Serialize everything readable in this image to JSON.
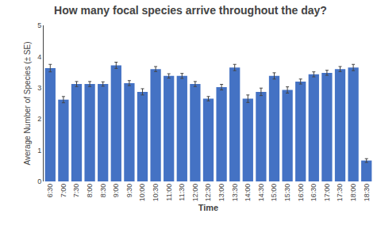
{
  "chart_data": {
    "type": "bar",
    "title": "How many focal species arrive throughout the day?",
    "xlabel": "Time",
    "ylabel": "Average Number of Species (± SE)",
    "categories": [
      "6:30",
      "7:00",
      "7:30",
      "8:00",
      "8:30",
      "9:00",
      "9:30",
      "10:00",
      "10:30",
      "11:00",
      "11:30",
      "12:00",
      "12:30",
      "13:00",
      "13:30",
      "14:00",
      "14:30",
      "15:00",
      "15:30",
      "16:00",
      "16:30",
      "17:00",
      "17:30",
      "18:00",
      "18:30"
    ],
    "values": [
      3.63,
      2.62,
      3.12,
      3.12,
      3.12,
      3.72,
      3.15,
      2.87,
      3.6,
      3.38,
      3.38,
      3.12,
      2.65,
      3.02,
      3.65,
      2.65,
      2.87,
      3.38,
      2.93,
      3.2,
      3.43,
      3.48,
      3.6,
      3.65,
      0.67
    ],
    "errors": [
      0.12,
      0.1,
      0.08,
      0.08,
      0.07,
      0.1,
      0.08,
      0.1,
      0.08,
      0.07,
      0.08,
      0.08,
      0.07,
      0.09,
      0.1,
      0.12,
      0.12,
      0.1,
      0.1,
      0.08,
      0.08,
      0.08,
      0.08,
      0.1,
      0.06
    ],
    "color": "#4472C4",
    "ylim": [
      0,
      5
    ],
    "yticks": [
      0,
      1,
      2,
      3,
      4,
      5
    ],
    "grid": false
  }
}
